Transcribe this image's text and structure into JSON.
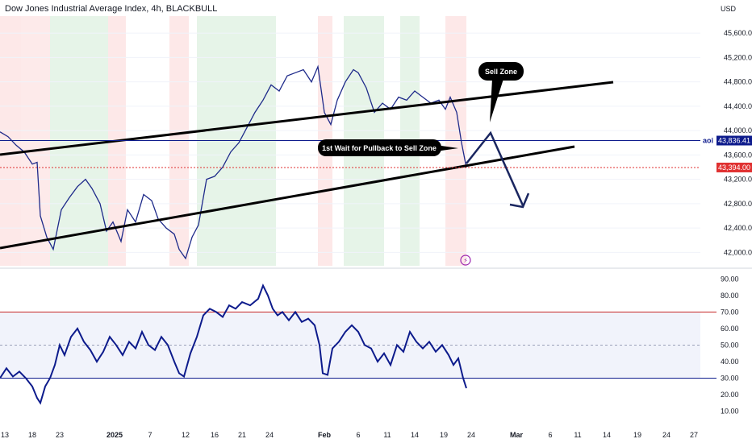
{
  "header": {
    "title": "Dow Jones Industrial Average Index, 4h, BLACKBULL",
    "currency": "USD"
  },
  "chart_data": [
    {
      "type": "line",
      "title": "Dow Jones Industrial Average Index, 4h, BLACKBULL",
      "y_ticks": [
        42000,
        42400,
        42800,
        43200,
        43600,
        44000,
        44400,
        44800,
        45200,
        45600
      ],
      "y_tick_labels": [
        "42,000.00",
        "42,400.00",
        "42,800.00",
        "43,200.00",
        "43,600.00",
        "44,000.00",
        "44,400.00",
        "44,800.00",
        "45,200.00",
        "45,600.00"
      ],
      "ylim": [
        41780,
        45880
      ],
      "x_ticks": [
        {
          "label": "13",
          "slot": 2
        },
        {
          "label": "18",
          "slot": 36
        },
        {
          "label": "23",
          "slot": 70
        },
        {
          "label": "2025",
          "slot": 138
        },
        {
          "label": "7",
          "slot": 182
        },
        {
          "label": "12",
          "slot": 226
        },
        {
          "label": "16",
          "slot": 262
        },
        {
          "label": "21",
          "slot": 296
        },
        {
          "label": "24",
          "slot": 330
        },
        {
          "label": "Feb",
          "slot": 398
        },
        {
          "label": "6",
          "slot": 440
        },
        {
          "label": "11",
          "slot": 476
        },
        {
          "label": "14",
          "slot": 510
        },
        {
          "label": "19",
          "slot": 546
        },
        {
          "label": "24",
          "slot": 580
        },
        {
          "label": "Mar",
          "slot": 636
        },
        {
          "label": "6",
          "slot": 678
        },
        {
          "label": "11",
          "slot": 712
        },
        {
          "label": "14",
          "slot": 748
        },
        {
          "label": "19",
          "slot": 786
        },
        {
          "label": "24",
          "slot": 822
        },
        {
          "label": "27",
          "slot": 856
        }
      ],
      "series": [
        {
          "points": [
            [
              0,
              43980
            ],
            [
              10,
              43900
            ],
            [
              20,
              43760
            ],
            [
              30,
              43650
            ],
            [
              40,
              43450
            ],
            [
              46,
              43480
            ],
            [
              50,
              42600
            ],
            [
              58,
              42250
            ],
            [
              66,
              42050
            ],
            [
              76,
              42700
            ],
            [
              86,
              42900
            ],
            [
              96,
              43080
            ],
            [
              106,
              43200
            ],
            [
              114,
              43050
            ],
            [
              124,
              42800
            ],
            [
              132,
              42350
            ],
            [
              140,
              42500
            ],
            [
              150,
              42180
            ],
            [
              158,
              42700
            ],
            [
              168,
              42500
            ],
            [
              178,
              42950
            ],
            [
              188,
              42850
            ],
            [
              196,
              42550
            ],
            [
              206,
              42400
            ],
            [
              216,
              42300
            ],
            [
              222,
              42050
            ],
            [
              230,
              41900
            ],
            [
              238,
              42250
            ],
            [
              246,
              42450
            ],
            [
              256,
              43200
            ],
            [
              266,
              43250
            ],
            [
              276,
              43400
            ],
            [
              286,
              43650
            ],
            [
              296,
              43800
            ],
            [
              306,
              44050
            ],
            [
              316,
              44300
            ],
            [
              326,
              44500
            ],
            [
              336,
              44750
            ],
            [
              346,
              44650
            ],
            [
              356,
              44900
            ],
            [
              366,
              44950
            ],
            [
              376,
              45000
            ],
            [
              386,
              44800
            ],
            [
              394,
              45050
            ],
            [
              402,
              44300
            ],
            [
              410,
              44100
            ],
            [
              418,
              44500
            ],
            [
              428,
              44800
            ],
            [
              438,
              45000
            ],
            [
              444,
              44950
            ],
            [
              454,
              44700
            ],
            [
              464,
              44300
            ],
            [
              474,
              44450
            ],
            [
              484,
              44350
            ],
            [
              494,
              44550
            ],
            [
              504,
              44500
            ],
            [
              514,
              44650
            ],
            [
              524,
              44550
            ],
            [
              534,
              44450
            ],
            [
              544,
              44500
            ],
            [
              552,
              44350
            ],
            [
              558,
              44550
            ],
            [
              566,
              44300
            ],
            [
              572,
              43800
            ],
            [
              578,
              43394
            ]
          ]
        }
      ],
      "levels": [
        {
          "label": "aoi",
          "value": 43836.41,
          "value_label": "43,836.41",
          "color": "#0d1b8c"
        },
        {
          "label": "",
          "value": 43394.0,
          "value_label": "43,394.00",
          "color": "#e03131"
        }
      ],
      "annotations": [
        {
          "text": "Sell Zone"
        },
        {
          "text": "1st Wait for Pullback to Sell Zone"
        }
      ]
    },
    {
      "type": "line",
      "title": "",
      "y_ticks": [
        10,
        20,
        30,
        40,
        50,
        60,
        70,
        80,
        90
      ],
      "y_tick_labels": [
        "10.00",
        "20.00",
        "30.00",
        "40.00",
        "50.00",
        "60.00",
        "70.00",
        "80.00",
        "90.00"
      ],
      "ylim": [
        3,
        95
      ],
      "bands": [
        30,
        70
      ],
      "midline": 50,
      "series": [
        {
          "color": "#0d1b8c",
          "points": [
            [
              0,
              30
            ],
            [
              8,
              36
            ],
            [
              16,
              31
            ],
            [
              24,
              34
            ],
            [
              32,
              30
            ],
            [
              40,
              25
            ],
            [
              46,
              18
            ],
            [
              50,
              15
            ],
            [
              56,
              25
            ],
            [
              62,
              30
            ],
            [
              68,
              38
            ],
            [
              74,
              50
            ],
            [
              80,
              44
            ],
            [
              88,
              55
            ],
            [
              96,
              60
            ],
            [
              104,
              52
            ],
            [
              112,
              47
            ],
            [
              120,
              40
            ],
            [
              128,
              46
            ],
            [
              136,
              55
            ],
            [
              144,
              50
            ],
            [
              152,
              44
            ],
            [
              160,
              52
            ],
            [
              168,
              48
            ],
            [
              176,
              58
            ],
            [
              184,
              50
            ],
            [
              192,
              47
            ],
            [
              200,
              55
            ],
            [
              208,
              50
            ],
            [
              216,
              40
            ],
            [
              222,
              33
            ],
            [
              228,
              31
            ],
            [
              236,
              45
            ],
            [
              244,
              55
            ],
            [
              252,
              68
            ],
            [
              260,
              72
            ],
            [
              268,
              70
            ],
            [
              276,
              67
            ],
            [
              284,
              74
            ],
            [
              292,
              72
            ],
            [
              300,
              76
            ],
            [
              310,
              74
            ],
            [
              320,
              78
            ],
            [
              326,
              86
            ],
            [
              332,
              80
            ],
            [
              338,
              72
            ],
            [
              344,
              68
            ],
            [
              350,
              70
            ],
            [
              358,
              65
            ],
            [
              366,
              70
            ],
            [
              374,
              64
            ],
            [
              382,
              66
            ],
            [
              390,
              62
            ],
            [
              396,
              50
            ],
            [
              400,
              33
            ],
            [
              406,
              32
            ],
            [
              412,
              48
            ],
            [
              420,
              52
            ],
            [
              428,
              58
            ],
            [
              436,
              62
            ],
            [
              444,
              58
            ],
            [
              452,
              50
            ],
            [
              460,
              48
            ],
            [
              468,
              40
            ],
            [
              476,
              45
            ],
            [
              484,
              38
            ],
            [
              492,
              50
            ],
            [
              500,
              46
            ],
            [
              508,
              58
            ],
            [
              516,
              52
            ],
            [
              524,
              48
            ],
            [
              532,
              52
            ],
            [
              540,
              46
            ],
            [
              548,
              50
            ],
            [
              556,
              44
            ],
            [
              562,
              38
            ],
            [
              568,
              42
            ],
            [
              574,
              30
            ],
            [
              578,
              24
            ]
          ]
        }
      ]
    }
  ]
}
